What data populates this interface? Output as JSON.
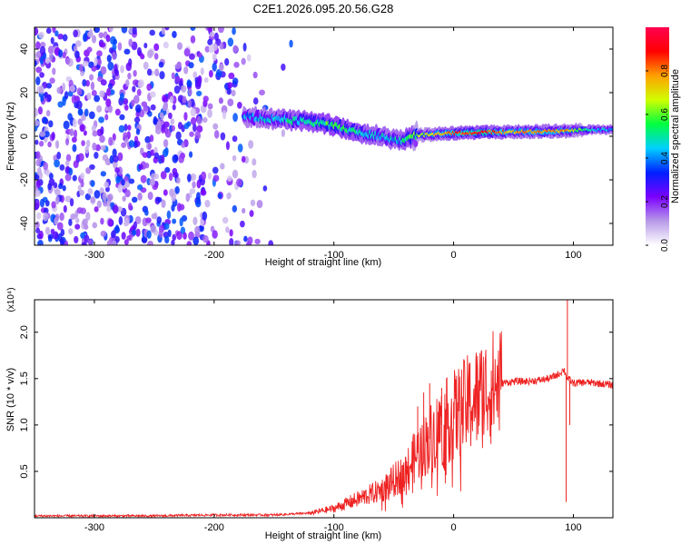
{
  "title": "C2E1.2026.095.20.56.G28",
  "chart_data": [
    {
      "type": "heatmap",
      "title": "",
      "xlabel": "Height of straight line (km)",
      "ylabel": "Frequency (Hz)",
      "xlim": [
        -350,
        133
      ],
      "ylim": [
        -50,
        50
      ],
      "xticks": [
        -300,
        -200,
        -100,
        0,
        100
      ],
      "yticks": [
        -40,
        -20,
        0,
        20,
        40
      ],
      "xtick_labels": [
        "-300",
        "-200",
        "-100",
        "0",
        "100"
      ],
      "ytick_labels": [
        "-40",
        "-20",
        "0",
        "20",
        "40"
      ],
      "colorbar": {
        "label": "Normalized spectral amplitude",
        "range": [
          0,
          1
        ],
        "ticks": [
          "0.0",
          "0.2",
          "0.4",
          "0.6",
          "0.8"
        ],
        "tick_values": [
          0.0,
          0.2,
          0.4,
          0.6,
          0.8
        ],
        "colors": [
          "#ffffff",
          "#b89ae8",
          "#7b00ff",
          "#0020ff",
          "#00d0ff",
          "#00ff40",
          "#d0ff00",
          "#ffa000",
          "#ff0000",
          "#ff0050"
        ]
      },
      "noise_region": {
        "x": [
          -350,
          -130
        ],
        "amplitude": 0.3
      },
      "signal_track": {
        "x": [
          -175,
          -150,
          -125,
          -100,
          -80,
          -60,
          -45,
          -30,
          -15,
          0,
          25,
          50,
          75,
          95,
          115,
          133
        ],
        "freq": [
          9,
          8,
          7,
          5,
          2,
          0,
          -2,
          0.5,
          1,
          1.5,
          1.8,
          2,
          2.2,
          2.5,
          3,
          3
        ],
        "amplitude": [
          0.4,
          0.45,
          0.5,
          0.55,
          0.5,
          0.45,
          0.45,
          0.6,
          0.75,
          0.85,
          0.9,
          0.75,
          0.8,
          0.75,
          0.45,
          0.4
        ]
      }
    },
    {
      "type": "line",
      "xlabel": "Height of straight line (km)",
      "ylabel": "SNR (10 * v/v)",
      "y_multiplier": "(x10⁴)",
      "xlim": [
        -350,
        133
      ],
      "ylim": [
        0,
        2.35
      ],
      "xticks": [
        -300,
        -200,
        -100,
        0,
        100
      ],
      "yticks": [
        0.5,
        1.0,
        1.5,
        2.0
      ],
      "xtick_labels": [
        "-300",
        "-200",
        "-100",
        "0",
        "100"
      ],
      "ytick_labels": [
        "0.5",
        "1.0",
        "1.5",
        "2.0"
      ],
      "color": "#ee2222",
      "series": [
        {
          "name": "SNR",
          "x": [
            -350,
            -300,
            -250,
            -200,
            -150,
            -120,
            -100,
            -80,
            -60,
            -40,
            -30,
            -20,
            -10,
            0,
            10,
            20,
            30,
            40,
            50,
            60,
            70,
            80,
            88,
            92,
            95,
            100,
            110,
            120,
            133
          ],
          "y": [
            0.02,
            0.02,
            0.02,
            0.03,
            0.03,
            0.05,
            0.1,
            0.2,
            0.3,
            0.5,
            0.7,
            0.85,
            1.0,
            1.1,
            1.2,
            1.3,
            1.4,
            1.45,
            1.47,
            1.47,
            1.48,
            1.5,
            1.55,
            1.6,
            1.5,
            1.45,
            1.46,
            1.45,
            1.43
          ]
        }
      ],
      "spikes": [
        {
          "x": -30,
          "y": 1.2
        },
        {
          "x": -25,
          "y": 1.35
        },
        {
          "x": -20,
          "y": 1.45
        },
        {
          "x": -10,
          "y": 1.4
        },
        {
          "x": 5,
          "y": 1.52
        },
        {
          "x": 95,
          "y": 2.35
        },
        {
          "x": 94,
          "y": 0.17
        },
        {
          "x": 97,
          "y": 1.0
        }
      ]
    }
  ]
}
